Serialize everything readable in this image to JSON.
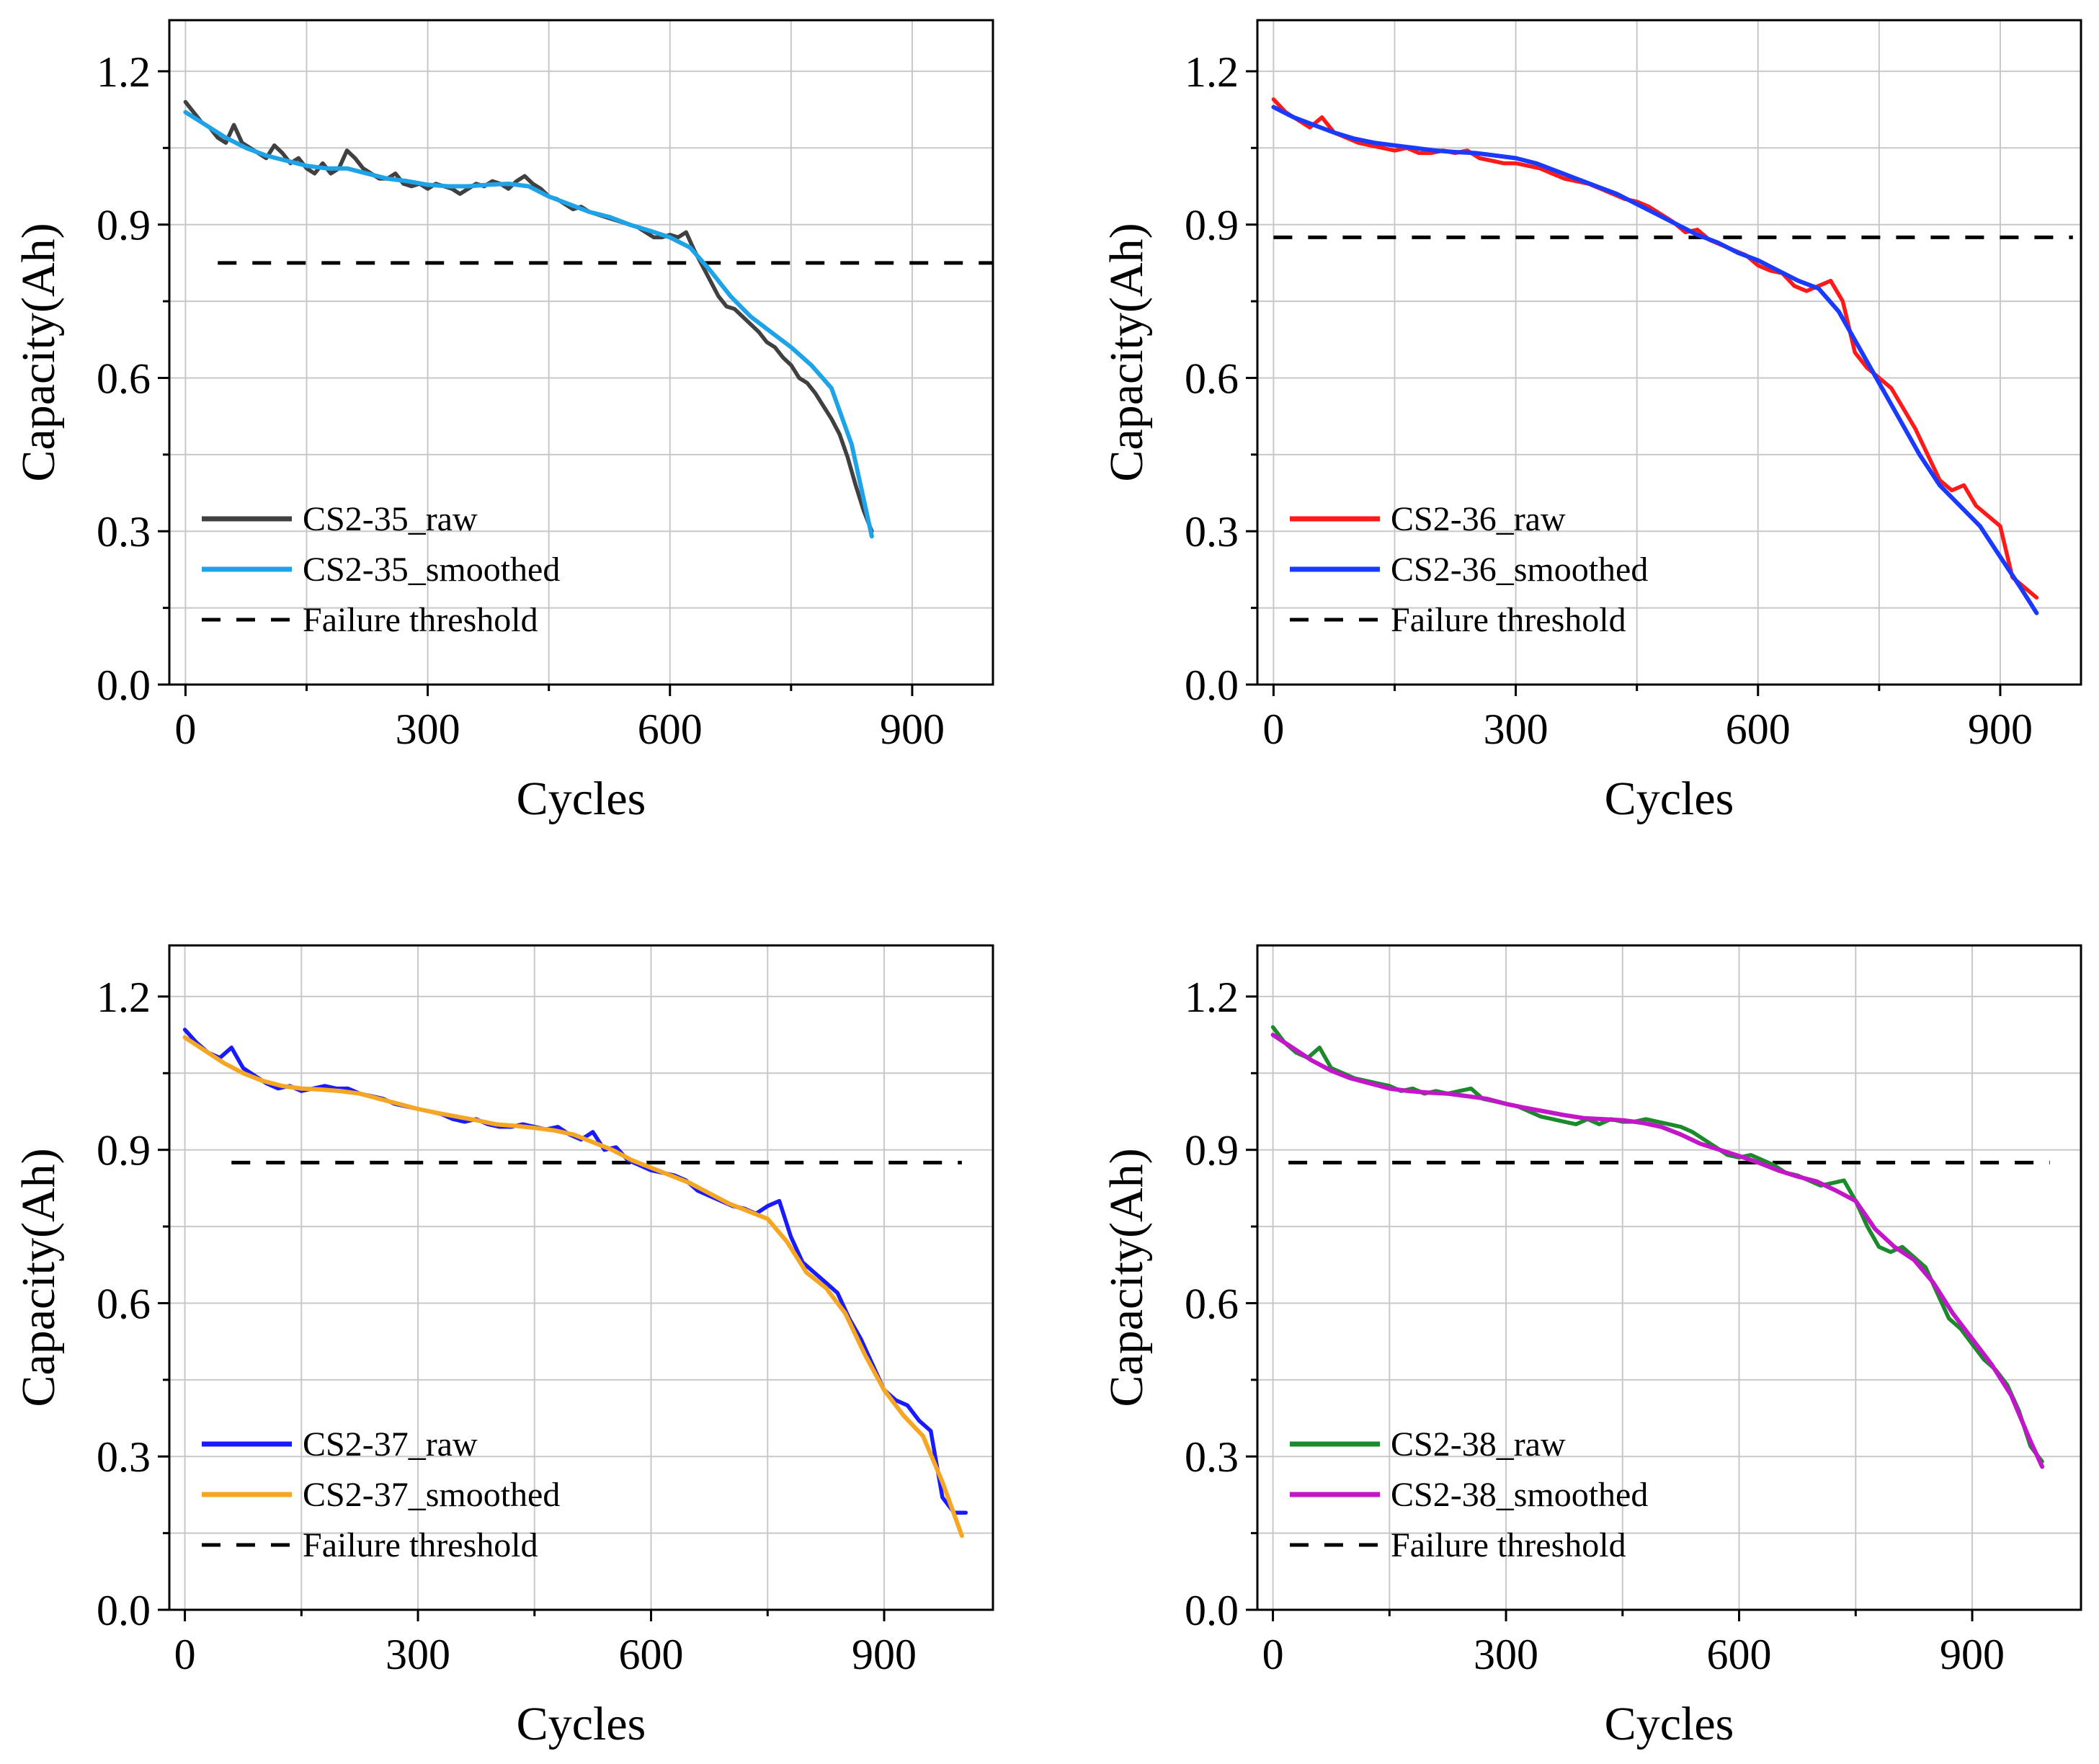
{
  "chart_data": [
    {
      "type": "line",
      "panel": "top-left",
      "xlabel": "Cycles",
      "ylabel": "Capacity(Ah)",
      "xlim": [
        -20,
        1000
      ],
      "ylim": [
        0,
        1.3
      ],
      "xticks": [
        0,
        300,
        600,
        900
      ],
      "yticks": [
        0.0,
        0.3,
        0.6,
        0.9,
        1.2
      ],
      "xtick_labels": [
        "0",
        "300",
        "600",
        "900"
      ],
      "ytick_labels": [
        "0.0",
        "0.3",
        "0.6",
        "0.9",
        "1.2"
      ],
      "grid": true,
      "legend_position": "lower-left",
      "threshold": 0.825,
      "threshold_x": [
        40,
        1000
      ],
      "series": [
        {
          "name": "CS2-35_raw",
          "color": "#404040",
          "x": [
            0,
            10,
            20,
            30,
            40,
            50,
            60,
            70,
            80,
            90,
            100,
            110,
            120,
            130,
            140,
            150,
            160,
            170,
            180,
            190,
            200,
            210,
            220,
            230,
            240,
            250,
            260,
            270,
            280,
            290,
            300,
            310,
            320,
            330,
            340,
            350,
            360,
            370,
            380,
            390,
            400,
            410,
            420,
            430,
            440,
            450,
            460,
            470,
            480,
            490,
            500,
            510,
            520,
            530,
            540,
            550,
            560,
            570,
            580,
            590,
            600,
            610,
            620,
            630,
            640,
            650,
            660,
            670,
            680,
            690,
            700,
            710,
            720,
            730,
            740,
            750,
            760,
            770,
            780,
            790,
            800,
            810,
            820,
            830,
            840,
            850
          ],
          "values": [
            1.14,
            1.12,
            1.1,
            1.09,
            1.07,
            1.06,
            1.095,
            1.06,
            1.05,
            1.04,
            1.03,
            1.055,
            1.04,
            1.02,
            1.03,
            1.01,
            1.0,
            1.02,
            1.0,
            1.01,
            1.045,
            1.03,
            1.01,
            1.0,
            0.99,
            0.99,
            1.0,
            0.98,
            0.975,
            0.98,
            0.97,
            0.98,
            0.975,
            0.97,
            0.96,
            0.97,
            0.98,
            0.975,
            0.985,
            0.98,
            0.97,
            0.985,
            0.995,
            0.98,
            0.97,
            0.955,
            0.95,
            0.94,
            0.93,
            0.935,
            0.925,
            0.92,
            0.915,
            0.91,
            0.905,
            0.9,
            0.895,
            0.885,
            0.875,
            0.875,
            0.88,
            0.875,
            0.885,
            0.85,
            0.82,
            0.79,
            0.76,
            0.74,
            0.735,
            0.72,
            0.705,
            0.69,
            0.67,
            0.66,
            0.64,
            0.625,
            0.6,
            0.59,
            0.57,
            0.545,
            0.52,
            0.49,
            0.445,
            0.39,
            0.34,
            0.3
          ]
        },
        {
          "name": "CS2-35_smoothed",
          "color": "#1ea3e8",
          "x": [
            0,
            25,
            50,
            75,
            100,
            125,
            150,
            175,
            200,
            225,
            250,
            275,
            300,
            325,
            350,
            375,
            400,
            425,
            450,
            475,
            500,
            525,
            550,
            575,
            600,
            625,
            650,
            675,
            700,
            725,
            750,
            775,
            800,
            825,
            850
          ],
          "values": [
            1.12,
            1.095,
            1.07,
            1.05,
            1.035,
            1.025,
            1.015,
            1.01,
            1.01,
            1.0,
            0.99,
            0.985,
            0.978,
            0.975,
            0.975,
            0.978,
            0.98,
            0.975,
            0.955,
            0.94,
            0.925,
            0.915,
            0.9,
            0.888,
            0.875,
            0.855,
            0.81,
            0.76,
            0.72,
            0.69,
            0.66,
            0.625,
            0.58,
            0.47,
            0.29
          ]
        }
      ]
    },
    {
      "type": "line",
      "panel": "top-right",
      "xlabel": "Cycles",
      "ylabel": "Capacity(Ah)",
      "xlim": [
        -20,
        1000
      ],
      "ylim": [
        0,
        1.3
      ],
      "xticks": [
        0,
        300,
        600,
        900
      ],
      "yticks": [
        0.0,
        0.3,
        0.6,
        0.9,
        1.2
      ],
      "xtick_labels": [
        "0",
        "300",
        "600",
        "900"
      ],
      "ytick_labels": [
        "0.0",
        "0.3",
        "0.6",
        "0.9",
        "1.2"
      ],
      "grid": true,
      "legend_position": "lower-left",
      "threshold": 0.875,
      "threshold_x": [
        0,
        990
      ],
      "series": [
        {
          "name": "CS2-36_raw",
          "color": "#ff1a1a",
          "x": [
            0,
            15,
            30,
            45,
            60,
            75,
            90,
            105,
            120,
            135,
            150,
            165,
            180,
            195,
            210,
            225,
            240,
            255,
            270,
            285,
            300,
            315,
            330,
            345,
            360,
            375,
            390,
            405,
            420,
            435,
            450,
            465,
            480,
            495,
            510,
            525,
            540,
            555,
            570,
            585,
            600,
            615,
            630,
            645,
            660,
            675,
            690,
            705,
            720,
            735,
            750,
            765,
            780,
            795,
            810,
            825,
            840,
            855,
            870,
            885,
            900,
            915,
            930,
            945
          ],
          "values": [
            1.145,
            1.12,
            1.105,
            1.09,
            1.11,
            1.08,
            1.07,
            1.06,
            1.055,
            1.05,
            1.045,
            1.05,
            1.04,
            1.04,
            1.045,
            1.04,
            1.045,
            1.03,
            1.025,
            1.02,
            1.02,
            1.015,
            1.01,
            1.0,
            0.99,
            0.985,
            0.98,
            0.97,
            0.96,
            0.95,
            0.945,
            0.935,
            0.92,
            0.905,
            0.885,
            0.89,
            0.87,
            0.86,
            0.85,
            0.84,
            0.82,
            0.81,
            0.805,
            0.78,
            0.77,
            0.78,
            0.79,
            0.75,
            0.65,
            0.62,
            0.6,
            0.58,
            0.54,
            0.5,
            0.45,
            0.4,
            0.38,
            0.39,
            0.35,
            0.33,
            0.31,
            0.21,
            0.19,
            0.17
          ]
        },
        {
          "name": "CS2-36_smoothed",
          "color": "#1a3aff",
          "x": [
            0,
            25,
            50,
            75,
            100,
            125,
            150,
            175,
            200,
            225,
            250,
            275,
            300,
            325,
            350,
            375,
            400,
            425,
            450,
            475,
            500,
            525,
            550,
            575,
            600,
            625,
            650,
            675,
            700,
            725,
            750,
            775,
            800,
            825,
            850,
            875,
            900,
            925,
            945
          ],
          "values": [
            1.13,
            1.11,
            1.095,
            1.08,
            1.068,
            1.06,
            1.055,
            1.05,
            1.045,
            1.042,
            1.04,
            1.035,
            1.03,
            1.02,
            1.005,
            0.99,
            0.975,
            0.96,
            0.94,
            0.92,
            0.9,
            0.88,
            0.865,
            0.845,
            0.83,
            0.81,
            0.79,
            0.775,
            0.73,
            0.66,
            0.59,
            0.52,
            0.45,
            0.39,
            0.35,
            0.31,
            0.25,
            0.19,
            0.14
          ]
        }
      ]
    },
    {
      "type": "line",
      "panel": "bottom-left",
      "xlabel": "Cycles",
      "ylabel": "Capacity(Ah)",
      "xlim": [
        -20,
        1040
      ],
      "ylim": [
        0,
        1.3
      ],
      "xticks": [
        0,
        300,
        600,
        900
      ],
      "yticks": [
        0.0,
        0.3,
        0.6,
        0.9,
        1.2
      ],
      "xtick_labels": [
        "0",
        "300",
        "600",
        "900"
      ],
      "ytick_labels": [
        "0.0",
        "0.3",
        "0.6",
        "0.9",
        "1.2"
      ],
      "grid": true,
      "legend_position": "lower-left",
      "threshold": 0.875,
      "threshold_x": [
        60,
        1000
      ],
      "series": [
        {
          "name": "CS2-37_raw",
          "color": "#1a1aff",
          "x": [
            0,
            15,
            30,
            45,
            60,
            75,
            90,
            105,
            120,
            135,
            150,
            165,
            180,
            195,
            210,
            225,
            240,
            255,
            270,
            285,
            300,
            315,
            330,
            345,
            360,
            375,
            390,
            405,
            420,
            435,
            450,
            465,
            480,
            495,
            510,
            525,
            540,
            555,
            570,
            585,
            600,
            615,
            630,
            645,
            660,
            675,
            690,
            705,
            720,
            735,
            750,
            765,
            780,
            795,
            810,
            825,
            840,
            855,
            870,
            885,
            900,
            915,
            930,
            945,
            960,
            975,
            990,
            1005
          ],
          "values": [
            1.135,
            1.11,
            1.09,
            1.08,
            1.1,
            1.06,
            1.045,
            1.03,
            1.02,
            1.025,
            1.015,
            1.02,
            1.025,
            1.02,
            1.02,
            1.01,
            1.005,
            1.0,
            0.99,
            0.985,
            0.98,
            0.975,
            0.97,
            0.96,
            0.955,
            0.96,
            0.95,
            0.945,
            0.945,
            0.95,
            0.945,
            0.94,
            0.945,
            0.93,
            0.92,
            0.935,
            0.9,
            0.905,
            0.88,
            0.87,
            0.86,
            0.855,
            0.85,
            0.84,
            0.82,
            0.81,
            0.8,
            0.79,
            0.785,
            0.775,
            0.79,
            0.8,
            0.73,
            0.68,
            0.66,
            0.64,
            0.62,
            0.57,
            0.53,
            0.48,
            0.43,
            0.41,
            0.4,
            0.37,
            0.35,
            0.22,
            0.19,
            0.19
          ]
        },
        {
          "name": "CS2-37_smoothed",
          "color": "#f5a623",
          "x": [
            0,
            25,
            50,
            75,
            100,
            125,
            150,
            175,
            200,
            225,
            250,
            275,
            300,
            325,
            350,
            375,
            400,
            425,
            450,
            475,
            500,
            525,
            550,
            575,
            600,
            625,
            650,
            675,
            700,
            725,
            750,
            775,
            800,
            825,
            850,
            875,
            900,
            925,
            950,
            975,
            1000
          ],
          "values": [
            1.12,
            1.095,
            1.07,
            1.05,
            1.035,
            1.025,
            1.02,
            1.018,
            1.015,
            1.01,
            1.0,
            0.99,
            0.98,
            0.972,
            0.965,
            0.958,
            0.95,
            0.947,
            0.943,
            0.938,
            0.93,
            0.915,
            0.9,
            0.88,
            0.865,
            0.85,
            0.835,
            0.815,
            0.795,
            0.78,
            0.765,
            0.72,
            0.66,
            0.63,
            0.58,
            0.5,
            0.43,
            0.38,
            0.34,
            0.25,
            0.145
          ]
        }
      ]
    },
    {
      "type": "line",
      "panel": "bottom-right",
      "xlabel": "Cycles",
      "ylabel": "Capacity(Ah)",
      "xlim": [
        -20,
        1040
      ],
      "ylim": [
        0,
        1.3
      ],
      "xticks": [
        0,
        300,
        600,
        900
      ],
      "yticks": [
        0.0,
        0.3,
        0.6,
        0.9,
        1.2
      ],
      "xtick_labels": [
        "0",
        "300",
        "600",
        "900"
      ],
      "ytick_labels": [
        "0.0",
        "0.3",
        "0.6",
        "0.9",
        "1.2"
      ],
      "grid": true,
      "legend_position": "lower-left",
      "threshold": 0.875,
      "threshold_x": [
        20,
        1000
      ],
      "series": [
        {
          "name": "CS2-38_raw",
          "color": "#1a8a2a",
          "x": [
            0,
            15,
            30,
            45,
            60,
            75,
            90,
            105,
            120,
            135,
            150,
            165,
            180,
            195,
            210,
            225,
            240,
            255,
            270,
            285,
            300,
            315,
            330,
            345,
            360,
            375,
            390,
            405,
            420,
            435,
            450,
            465,
            480,
            495,
            510,
            525,
            540,
            555,
            570,
            585,
            600,
            615,
            630,
            645,
            660,
            675,
            690,
            705,
            720,
            735,
            750,
            765,
            780,
            795,
            810,
            825,
            840,
            855,
            870,
            885,
            900,
            915,
            930,
            945,
            960,
            975,
            990
          ],
          "values": [
            1.14,
            1.11,
            1.09,
            1.08,
            1.1,
            1.06,
            1.05,
            1.04,
            1.035,
            1.03,
            1.025,
            1.015,
            1.02,
            1.01,
            1.015,
            1.01,
            1.015,
            1.02,
            1.0,
            0.995,
            0.99,
            0.985,
            0.975,
            0.965,
            0.96,
            0.955,
            0.95,
            0.96,
            0.95,
            0.96,
            0.955,
            0.955,
            0.96,
            0.955,
            0.95,
            0.945,
            0.935,
            0.92,
            0.905,
            0.89,
            0.885,
            0.89,
            0.88,
            0.87,
            0.855,
            0.85,
            0.84,
            0.83,
            0.835,
            0.84,
            0.8,
            0.75,
            0.71,
            0.7,
            0.71,
            0.69,
            0.67,
            0.62,
            0.57,
            0.55,
            0.52,
            0.49,
            0.47,
            0.44,
            0.39,
            0.32,
            0.29
          ]
        },
        {
          "name": "CS2-38_smoothed",
          "color": "#c217c9",
          "x": [
            0,
            25,
            50,
            75,
            100,
            125,
            150,
            175,
            200,
            225,
            250,
            275,
            300,
            325,
            350,
            375,
            400,
            425,
            450,
            475,
            500,
            525,
            550,
            575,
            600,
            625,
            650,
            675,
            700,
            725,
            750,
            775,
            800,
            825,
            850,
            875,
            900,
            925,
            950,
            975,
            990
          ],
          "values": [
            1.125,
            1.1,
            1.075,
            1.055,
            1.04,
            1.03,
            1.02,
            1.015,
            1.012,
            1.01,
            1.005,
            1.0,
            0.99,
            0.982,
            0.975,
            0.968,
            0.962,
            0.96,
            0.958,
            0.953,
            0.945,
            0.93,
            0.912,
            0.9,
            0.888,
            0.875,
            0.86,
            0.848,
            0.838,
            0.82,
            0.8,
            0.745,
            0.71,
            0.685,
            0.64,
            0.58,
            0.53,
            0.48,
            0.42,
            0.33,
            0.28
          ]
        }
      ]
    }
  ],
  "legend": {
    "threshold_label": "Failure threshold",
    "threshold_color": "#000000"
  }
}
